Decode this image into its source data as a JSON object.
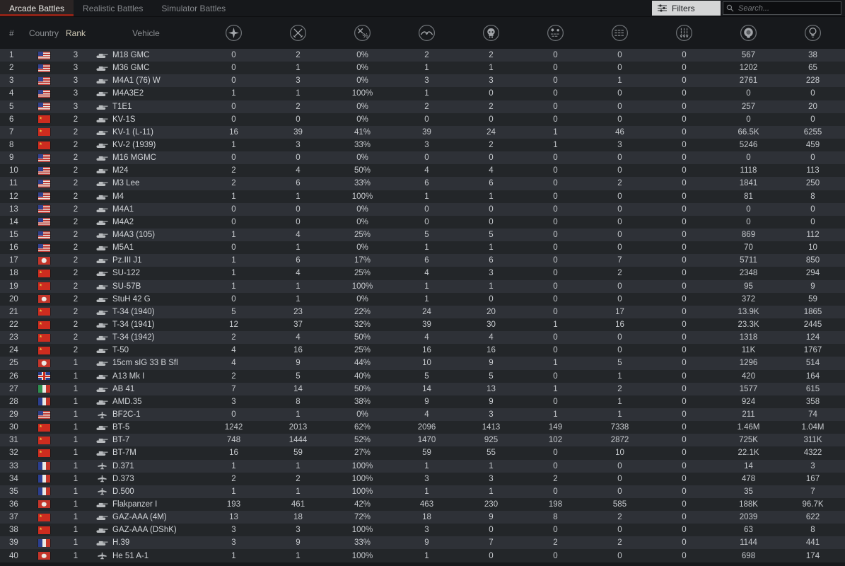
{
  "tabs": [
    {
      "label": "Arcade Battles",
      "active": true
    },
    {
      "label": "Realistic Battles",
      "active": false
    },
    {
      "label": "Simulator Battles",
      "active": false
    }
  ],
  "filters": {
    "label": "Filters"
  },
  "search": {
    "placeholder": "Search..."
  },
  "colors": {
    "background": "#17191c",
    "row_odd": "#2e3137",
    "row_even": "#232629",
    "active_tab_accent": "#8e2317",
    "text": "#c7cace"
  },
  "table": {
    "headers": {
      "num": "#",
      "country": "Country",
      "rank": "Rank",
      "vehicle": "Vehicle"
    },
    "stat_columns": [
      "victories",
      "battles",
      "win-rate",
      "respawns",
      "deaths",
      "air-targets-destroyed",
      "ground-targets-destroyed",
      "naval-targets-destroyed",
      "silver-lions-earned",
      "research-points-earned"
    ],
    "rows": [
      {
        "num": 1,
        "country": "usa",
        "rank": 3,
        "vehicle": "M18 GMC",
        "type": "tank",
        "stats": [
          "0",
          "2",
          "0%",
          "2",
          "2",
          "0",
          "0",
          "0",
          "567",
          "38"
        ]
      },
      {
        "num": 2,
        "country": "usa",
        "rank": 3,
        "vehicle": "M36 GMC",
        "type": "tank",
        "stats": [
          "0",
          "1",
          "0%",
          "1",
          "1",
          "0",
          "0",
          "0",
          "1202",
          "65"
        ]
      },
      {
        "num": 3,
        "country": "usa",
        "rank": 3,
        "vehicle": "M4A1 (76) W",
        "type": "tank",
        "stats": [
          "0",
          "3",
          "0%",
          "3",
          "3",
          "0",
          "1",
          "0",
          "2761",
          "228"
        ]
      },
      {
        "num": 4,
        "country": "usa",
        "rank": 3,
        "vehicle": "M4A3E2",
        "type": "tank",
        "stats": [
          "1",
          "1",
          "100%",
          "1",
          "0",
          "0",
          "0",
          "0",
          "0",
          "0"
        ]
      },
      {
        "num": 5,
        "country": "usa",
        "rank": 3,
        "vehicle": "T1E1",
        "type": "tank",
        "stats": [
          "0",
          "2",
          "0%",
          "2",
          "2",
          "0",
          "0",
          "0",
          "257",
          "20"
        ]
      },
      {
        "num": 6,
        "country": "ussr",
        "rank": 2,
        "vehicle": "KV-1S",
        "type": "tank",
        "stats": [
          "0",
          "0",
          "0%",
          "0",
          "0",
          "0",
          "0",
          "0",
          "0",
          "0"
        ]
      },
      {
        "num": 7,
        "country": "ussr",
        "rank": 2,
        "vehicle": "KV-1 (L-11)",
        "type": "tank",
        "stats": [
          "16",
          "39",
          "41%",
          "39",
          "24",
          "1",
          "46",
          "0",
          "66.5K",
          "6255"
        ]
      },
      {
        "num": 8,
        "country": "ussr",
        "rank": 2,
        "vehicle": "KV-2 (1939)",
        "type": "tank",
        "stats": [
          "1",
          "3",
          "33%",
          "3",
          "2",
          "1",
          "3",
          "0",
          "5246",
          "459"
        ]
      },
      {
        "num": 9,
        "country": "usa",
        "rank": 2,
        "vehicle": "M16 MGMC",
        "type": "tank",
        "stats": [
          "0",
          "0",
          "0%",
          "0",
          "0",
          "0",
          "0",
          "0",
          "0",
          "0"
        ]
      },
      {
        "num": 10,
        "country": "usa",
        "rank": 2,
        "vehicle": "M24",
        "type": "tank",
        "stats": [
          "2",
          "4",
          "50%",
          "4",
          "4",
          "0",
          "0",
          "0",
          "1118",
          "113"
        ]
      },
      {
        "num": 11,
        "country": "usa",
        "rank": 2,
        "vehicle": "M3 Lee",
        "type": "tank",
        "stats": [
          "2",
          "6",
          "33%",
          "6",
          "6",
          "0",
          "2",
          "0",
          "1841",
          "250"
        ]
      },
      {
        "num": 12,
        "country": "usa",
        "rank": 2,
        "vehicle": "M4",
        "type": "tank",
        "stats": [
          "1",
          "1",
          "100%",
          "1",
          "1",
          "0",
          "0",
          "0",
          "81",
          "8"
        ]
      },
      {
        "num": 13,
        "country": "usa",
        "rank": 2,
        "vehicle": "M4A1",
        "type": "tank",
        "stats": [
          "0",
          "0",
          "0%",
          "0",
          "0",
          "0",
          "0",
          "0",
          "0",
          "0"
        ]
      },
      {
        "num": 14,
        "country": "usa",
        "rank": 2,
        "vehicle": "M4A2",
        "type": "tank",
        "stats": [
          "0",
          "0",
          "0%",
          "0",
          "0",
          "0",
          "0",
          "0",
          "0",
          "0"
        ]
      },
      {
        "num": 15,
        "country": "usa",
        "rank": 2,
        "vehicle": "M4A3 (105)",
        "type": "tank",
        "stats": [
          "1",
          "4",
          "25%",
          "5",
          "5",
          "0",
          "0",
          "0",
          "869",
          "112"
        ]
      },
      {
        "num": 16,
        "country": "usa",
        "rank": 2,
        "vehicle": "M5A1",
        "type": "tank",
        "stats": [
          "0",
          "1",
          "0%",
          "1",
          "1",
          "0",
          "0",
          "0",
          "70",
          "10"
        ]
      },
      {
        "num": 17,
        "country": "germany",
        "rank": 2,
        "vehicle": "Pz.III J1",
        "type": "tank",
        "stats": [
          "1",
          "6",
          "17%",
          "6",
          "6",
          "0",
          "7",
          "0",
          "5711",
          "850"
        ]
      },
      {
        "num": 18,
        "country": "ussr",
        "rank": 2,
        "vehicle": "SU-122",
        "type": "tank",
        "stats": [
          "1",
          "4",
          "25%",
          "4",
          "3",
          "0",
          "2",
          "0",
          "2348",
          "294"
        ]
      },
      {
        "num": 19,
        "country": "ussr",
        "rank": 2,
        "vehicle": "SU-57B",
        "type": "tank",
        "stats": [
          "1",
          "1",
          "100%",
          "1",
          "1",
          "0",
          "0",
          "0",
          "95",
          "9"
        ]
      },
      {
        "num": 20,
        "country": "germany",
        "rank": 2,
        "vehicle": "StuH 42 G",
        "type": "tank",
        "stats": [
          "0",
          "1",
          "0%",
          "1",
          "0",
          "0",
          "0",
          "0",
          "372",
          "59"
        ]
      },
      {
        "num": 21,
        "country": "ussr",
        "rank": 2,
        "vehicle": "T-34 (1940)",
        "type": "tank",
        "stats": [
          "5",
          "23",
          "22%",
          "24",
          "20",
          "0",
          "17",
          "0",
          "13.9K",
          "1865"
        ]
      },
      {
        "num": 22,
        "country": "ussr",
        "rank": 2,
        "vehicle": "T-34 (1941)",
        "type": "tank",
        "stats": [
          "12",
          "37",
          "32%",
          "39",
          "30",
          "1",
          "16",
          "0",
          "23.3K",
          "2445"
        ]
      },
      {
        "num": 23,
        "country": "ussr",
        "rank": 2,
        "vehicle": "T-34 (1942)",
        "type": "tank",
        "stats": [
          "2",
          "4",
          "50%",
          "4",
          "4",
          "0",
          "0",
          "0",
          "1318",
          "124"
        ]
      },
      {
        "num": 24,
        "country": "ussr",
        "rank": 2,
        "vehicle": "T-50",
        "type": "tank",
        "stats": [
          "4",
          "16",
          "25%",
          "16",
          "16",
          "0",
          "0",
          "0",
          "11K",
          "1767"
        ]
      },
      {
        "num": 25,
        "country": "germany",
        "rank": 1,
        "vehicle": "15cm sIG 33 B Sfl",
        "type": "tank",
        "stats": [
          "4",
          "9",
          "44%",
          "10",
          "9",
          "1",
          "5",
          "0",
          "1296",
          "514"
        ]
      },
      {
        "num": 26,
        "country": "uk",
        "rank": 1,
        "vehicle": "A13 Mk I",
        "type": "tank",
        "stats": [
          "2",
          "5",
          "40%",
          "5",
          "5",
          "0",
          "1",
          "0",
          "420",
          "164"
        ]
      },
      {
        "num": 27,
        "country": "italy",
        "rank": 1,
        "vehicle": "AB 41",
        "type": "tank",
        "stats": [
          "7",
          "14",
          "50%",
          "14",
          "13",
          "1",
          "2",
          "0",
          "1577",
          "615"
        ]
      },
      {
        "num": 28,
        "country": "france",
        "rank": 1,
        "vehicle": "AMD.35",
        "type": "tank",
        "stats": [
          "3",
          "8",
          "38%",
          "9",
          "9",
          "0",
          "1",
          "0",
          "924",
          "358"
        ]
      },
      {
        "num": 29,
        "country": "usa",
        "rank": 1,
        "vehicle": "BF2C-1",
        "type": "plane",
        "stats": [
          "0",
          "1",
          "0%",
          "4",
          "3",
          "1",
          "1",
          "0",
          "211",
          "74"
        ]
      },
      {
        "num": 30,
        "country": "ussr",
        "rank": 1,
        "vehicle": "BT-5",
        "type": "tank",
        "stats": [
          "1242",
          "2013",
          "62%",
          "2096",
          "1413",
          "149",
          "7338",
          "0",
          "1.46M",
          "1.04M"
        ]
      },
      {
        "num": 31,
        "country": "ussr",
        "rank": 1,
        "vehicle": "BT-7",
        "type": "tank",
        "stats": [
          "748",
          "1444",
          "52%",
          "1470",
          "925",
          "102",
          "2872",
          "0",
          "725K",
          "311K"
        ]
      },
      {
        "num": 32,
        "country": "ussr",
        "rank": 1,
        "vehicle": "BT-7M",
        "type": "tank",
        "stats": [
          "16",
          "59",
          "27%",
          "59",
          "55",
          "0",
          "10",
          "0",
          "22.1K",
          "4322"
        ]
      },
      {
        "num": 33,
        "country": "france",
        "rank": 1,
        "vehicle": "D.371",
        "type": "plane",
        "stats": [
          "1",
          "1",
          "100%",
          "1",
          "1",
          "0",
          "0",
          "0",
          "14",
          "3"
        ]
      },
      {
        "num": 34,
        "country": "france",
        "rank": 1,
        "vehicle": "D.373",
        "type": "plane",
        "stats": [
          "2",
          "2",
          "100%",
          "3",
          "3",
          "2",
          "0",
          "0",
          "478",
          "167"
        ]
      },
      {
        "num": 35,
        "country": "france",
        "rank": 1,
        "vehicle": "D.500",
        "type": "plane",
        "stats": [
          "1",
          "1",
          "100%",
          "1",
          "1",
          "0",
          "0",
          "0",
          "35",
          "7"
        ]
      },
      {
        "num": 36,
        "country": "germany",
        "rank": 1,
        "vehicle": "Flakpanzer I",
        "type": "tank",
        "stats": [
          "193",
          "461",
          "42%",
          "463",
          "230",
          "198",
          "585",
          "0",
          "188K",
          "96.7K"
        ]
      },
      {
        "num": 37,
        "country": "ussr",
        "rank": 1,
        "vehicle": "GAZ-AAA (4M)",
        "type": "tank",
        "stats": [
          "13",
          "18",
          "72%",
          "18",
          "9",
          "8",
          "2",
          "0",
          "2039",
          "622"
        ]
      },
      {
        "num": 38,
        "country": "ussr",
        "rank": 1,
        "vehicle": "GAZ-AAA (DShK)",
        "type": "tank",
        "stats": [
          "3",
          "3",
          "100%",
          "3",
          "0",
          "0",
          "0",
          "0",
          "63",
          "8"
        ]
      },
      {
        "num": 39,
        "country": "france",
        "rank": 1,
        "vehicle": "H.39",
        "type": "tank",
        "stats": [
          "3",
          "9",
          "33%",
          "9",
          "7",
          "2",
          "2",
          "0",
          "1144",
          "441"
        ]
      },
      {
        "num": 40,
        "country": "germany",
        "rank": 1,
        "vehicle": "He 51 A-1",
        "type": "plane",
        "stats": [
          "1",
          "1",
          "100%",
          "1",
          "0",
          "0",
          "0",
          "0",
          "698",
          "174"
        ]
      }
    ]
  }
}
